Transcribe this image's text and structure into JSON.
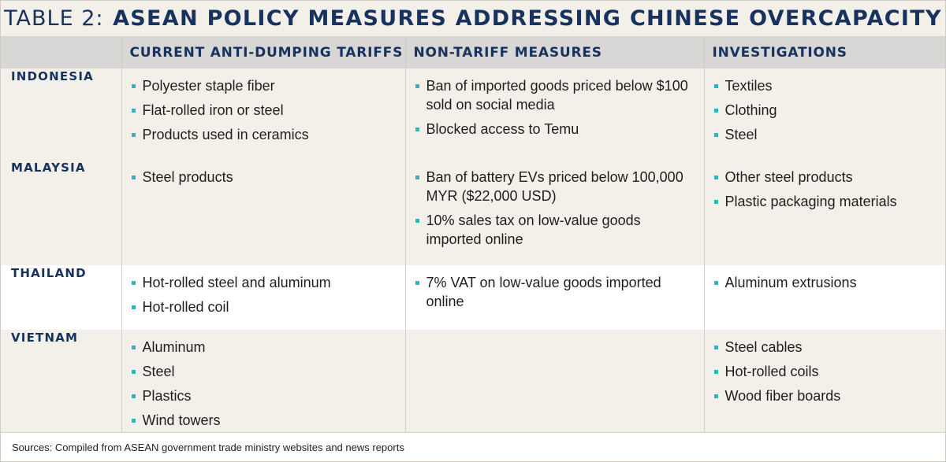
{
  "title": {
    "prefix": "TABLE 2:",
    "main": "ASEAN POLICY MEASURES ADDRESSING CHINESE OVERCAPACITY"
  },
  "headers": [
    "",
    "CURRENT ANTI-DUMPING TARIFFS",
    "NON-TARIFF MEASURES",
    "INVESTIGATIONS"
  ],
  "rows": [
    {
      "country": "INDONESIA",
      "tariffs": [
        "Polyester staple fiber",
        "Flat-rolled iron or steel",
        "Products used in ceramics"
      ],
      "nontariff": [
        "Ban of imported goods priced below $100 sold on social media",
        "Blocked access to Temu"
      ],
      "investigations": [
        "Textiles",
        "Clothing",
        "Steel"
      ]
    },
    {
      "country": "MALAYSIA",
      "tariffs": [
        "Steel products"
      ],
      "nontariff": [
        "Ban of battery EVs priced below 100,000 MYR ($22,000 USD)",
        "10% sales tax on low-value goods imported online"
      ],
      "investigations": [
        "Other steel products",
        "Plastic packaging materials"
      ]
    },
    {
      "country": "THAILAND",
      "tariffs": [
        "Hot-rolled steel and aluminum",
        "Hot-rolled coil"
      ],
      "nontariff": [
        "7% VAT on low-value goods imported online"
      ],
      "investigations": [
        "Aluminum extrusions"
      ]
    },
    {
      "country": "VIETNAM",
      "tariffs": [
        "Aluminum",
        "Steel",
        "Plastics",
        "Wind towers"
      ],
      "nontariff": [],
      "investigations": [
        "Steel cables",
        "Hot-rolled coils",
        "Wood fiber boards"
      ]
    }
  ],
  "source": "Sources: Compiled from ASEAN government trade ministry websites and news reports",
  "colors": {
    "navy": "#17325e",
    "bullet": "#2fb5bf",
    "shade": "#f3f0e9",
    "header": "#d8d7d6"
  }
}
